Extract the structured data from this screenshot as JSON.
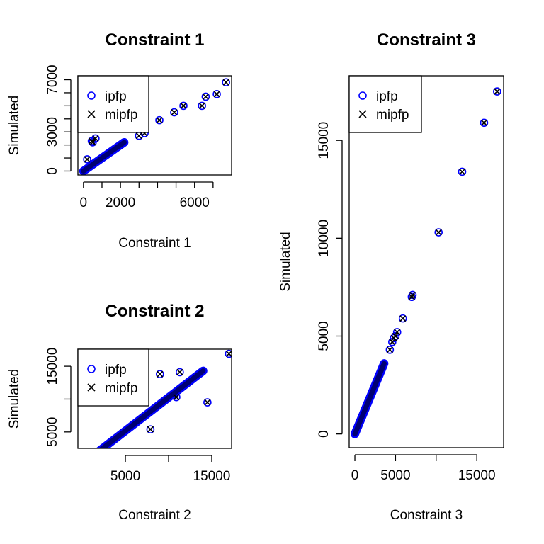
{
  "colors": {
    "ipfp": "#0000ff",
    "mipfp": "#000000",
    "axis": "#000000"
  },
  "chart_data": [
    {
      "type": "scatter",
      "title": "Constraint 1",
      "xlabel": "Constraint 1",
      "ylabel": "Simulated",
      "xlim": [
        -300,
        8000
      ],
      "ylim": [
        -300,
        7300
      ],
      "xticks": [
        0,
        1000,
        2000,
        3000,
        4000,
        5000,
        6000,
        7000
      ],
      "xtick_labels": [
        "0",
        "",
        "2000",
        "",
        "",
        "",
        "6000",
        ""
      ],
      "yticks": [
        0,
        1000,
        2000,
        3000,
        4000,
        5000,
        6000,
        7000
      ],
      "ytick_labels": [
        "0",
        "",
        "",
        "3000",
        "",
        "",
        "",
        "7000"
      ],
      "legend": {
        "position": "top-left",
        "entries": [
          {
            "label": "ipfp",
            "marker": "circle"
          },
          {
            "label": "mipfp",
            "marker": "cross"
          }
        ]
      },
      "series": [
        {
          "name": "ipfp",
          "marker": "circle",
          "band": [
            [
              0,
              0
            ],
            [
              2200,
              2200
            ]
          ],
          "x": [
            200,
            450,
            500,
            650,
            3000,
            3300,
            4100,
            4900,
            5400,
            6400,
            6600,
            7200,
            7700
          ],
          "y": [
            900,
            2300,
            2200,
            2500,
            2700,
            2900,
            3900,
            4500,
            5000,
            5000,
            5700,
            5900,
            6800
          ]
        },
        {
          "name": "mipfp",
          "marker": "cross",
          "band": [
            [
              0,
              0
            ],
            [
              2200,
              2200
            ]
          ],
          "x": [
            200,
            450,
            500,
            650,
            3000,
            3300,
            4100,
            4900,
            5400,
            6400,
            6600,
            7200,
            7700
          ],
          "y": [
            900,
            2300,
            2200,
            2500,
            2700,
            2900,
            3900,
            4500,
            5000,
            5000,
            5700,
            5900,
            6800
          ]
        }
      ]
    },
    {
      "type": "scatter",
      "title": "Constraint 2",
      "xlabel": "Constraint 2",
      "ylabel": "Simulated",
      "xlim": [
        -500,
        17300
      ],
      "ylim": [
        2500,
        17600
      ],
      "xticks": [
        5000,
        10000,
        15000
      ],
      "xtick_labels": [
        "5000",
        "",
        "15000"
      ],
      "yticks": [
        5000,
        10000,
        15000
      ],
      "ytick_labels": [
        "5000",
        "",
        "15000"
      ],
      "legend": {
        "position": "top-left",
        "entries": [
          {
            "label": "ipfp",
            "marker": "circle"
          },
          {
            "label": "mipfp",
            "marker": "cross"
          }
        ]
      },
      "series": [
        {
          "name": "ipfp",
          "marker": "circle",
          "band": [
            [
              100,
              200
            ],
            [
              14000,
              14300
            ]
          ],
          "x": [
            9000,
            11300,
            10900,
            7900,
            14500,
            17000
          ],
          "y": [
            13800,
            14100,
            10300,
            5400,
            9500,
            16900
          ]
        },
        {
          "name": "mipfp",
          "marker": "cross",
          "band": [
            [
              100,
              200
            ],
            [
              14000,
              14300
            ]
          ],
          "x": [
            9000,
            11300,
            10900,
            7900,
            14500,
            17000
          ],
          "y": [
            13800,
            14100,
            10300,
            5400,
            9500,
            16900
          ]
        }
      ]
    },
    {
      "type": "scatter",
      "title": "Constraint 3",
      "xlabel": "Constraint 3",
      "ylabel": "Simulated",
      "xlim": [
        -700,
        18300
      ],
      "ylim": [
        -700,
        18300
      ],
      "xticks": [
        0,
        5000,
        10000,
        15000
      ],
      "xtick_labels": [
        "0",
        "5000",
        "",
        "15000"
      ],
      "yticks": [
        0,
        5000,
        10000,
        15000
      ],
      "ytick_labels": [
        "0",
        "5000",
        "10000",
        "15000"
      ],
      "legend": {
        "position": "top-left",
        "entries": [
          {
            "label": "ipfp",
            "marker": "circle"
          },
          {
            "label": "mipfp",
            "marker": "cross"
          }
        ]
      },
      "series": [
        {
          "name": "ipfp",
          "marker": "circle",
          "band": [
            [
              0,
              0
            ],
            [
              3600,
              3600
            ]
          ],
          "x": [
            4300,
            4600,
            4800,
            5000,
            5200,
            5900,
            7000,
            7100,
            10300,
            13200,
            15900,
            17500
          ],
          "y": [
            4300,
            4700,
            4900,
            5000,
            5200,
            5900,
            7000,
            7100,
            10300,
            13400,
            15900,
            17500
          ]
        },
        {
          "name": "mipfp",
          "marker": "cross",
          "band": [
            [
              0,
              0
            ],
            [
              3600,
              3600
            ]
          ],
          "x": [
            4300,
            4600,
            4800,
            5000,
            5200,
            5900,
            7000,
            7100,
            10300,
            13200,
            15900,
            17500
          ],
          "y": [
            4300,
            4700,
            4900,
            5000,
            5200,
            5900,
            7000,
            7100,
            10300,
            13400,
            15900,
            17500
          ]
        }
      ]
    }
  ]
}
